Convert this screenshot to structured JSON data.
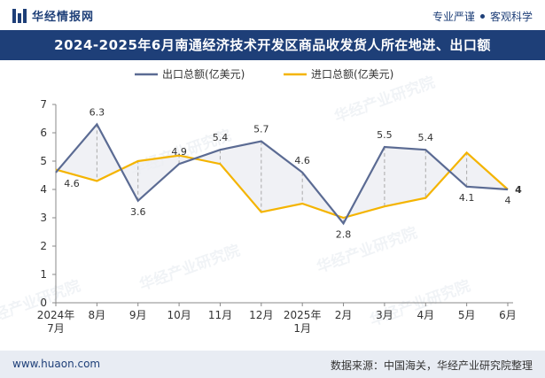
{
  "header": {
    "brand": "华经情报网",
    "tag_left": "专业严谨",
    "tag_right": "客观科学"
  },
  "title": "2024-2025年6月南通经济技术开发区商品收发货人所在地进、出口额",
  "footer": {
    "url": "www.huaon.com",
    "source": "数据来源：中国海关，华经产业研究院整理"
  },
  "watermark": "华经产业研究院",
  "colors": {
    "export": "#5b6b93",
    "import": "#f4b400",
    "header_bg": "#1e3f78"
  },
  "chart_data": {
    "type": "line",
    "categories": [
      [
        "2024年",
        "7月"
      ],
      [
        "8月"
      ],
      [
        "9月"
      ],
      [
        "10月"
      ],
      [
        "11月"
      ],
      [
        "12月"
      ],
      [
        "2025年",
        "1月"
      ],
      [
        "2月"
      ],
      [
        "3月"
      ],
      [
        "4月"
      ],
      [
        "5月"
      ],
      [
        "6月"
      ]
    ],
    "series": [
      {
        "name": "出口总额(亿美元)",
        "values": [
          4.6,
          6.3,
          3.6,
          4.9,
          5.4,
          5.7,
          4.6,
          2.8,
          5.5,
          5.4,
          4.1,
          4.0
        ]
      },
      {
        "name": "进口总额(亿美元)",
        "values": [
          4.7,
          4.3,
          5.0,
          5.2,
          4.9,
          3.2,
          3.5,
          3.0,
          3.4,
          3.7,
          5.3,
          4.0
        ]
      }
    ],
    "data_labels": [
      "4.6",
      "6.3",
      "3.6",
      "4.9",
      "5.4",
      "5.7",
      "4.6",
      "2.8",
      "5.5",
      "5.4",
      "4.1",
      "4"
    ],
    "last_import_label": "4",
    "ylim": [
      0,
      7
    ],
    "yticks": [
      "0",
      "1",
      "2",
      "3",
      "4",
      "5",
      "6",
      "7"
    ],
    "legend_position": "top-center",
    "grid": false
  }
}
